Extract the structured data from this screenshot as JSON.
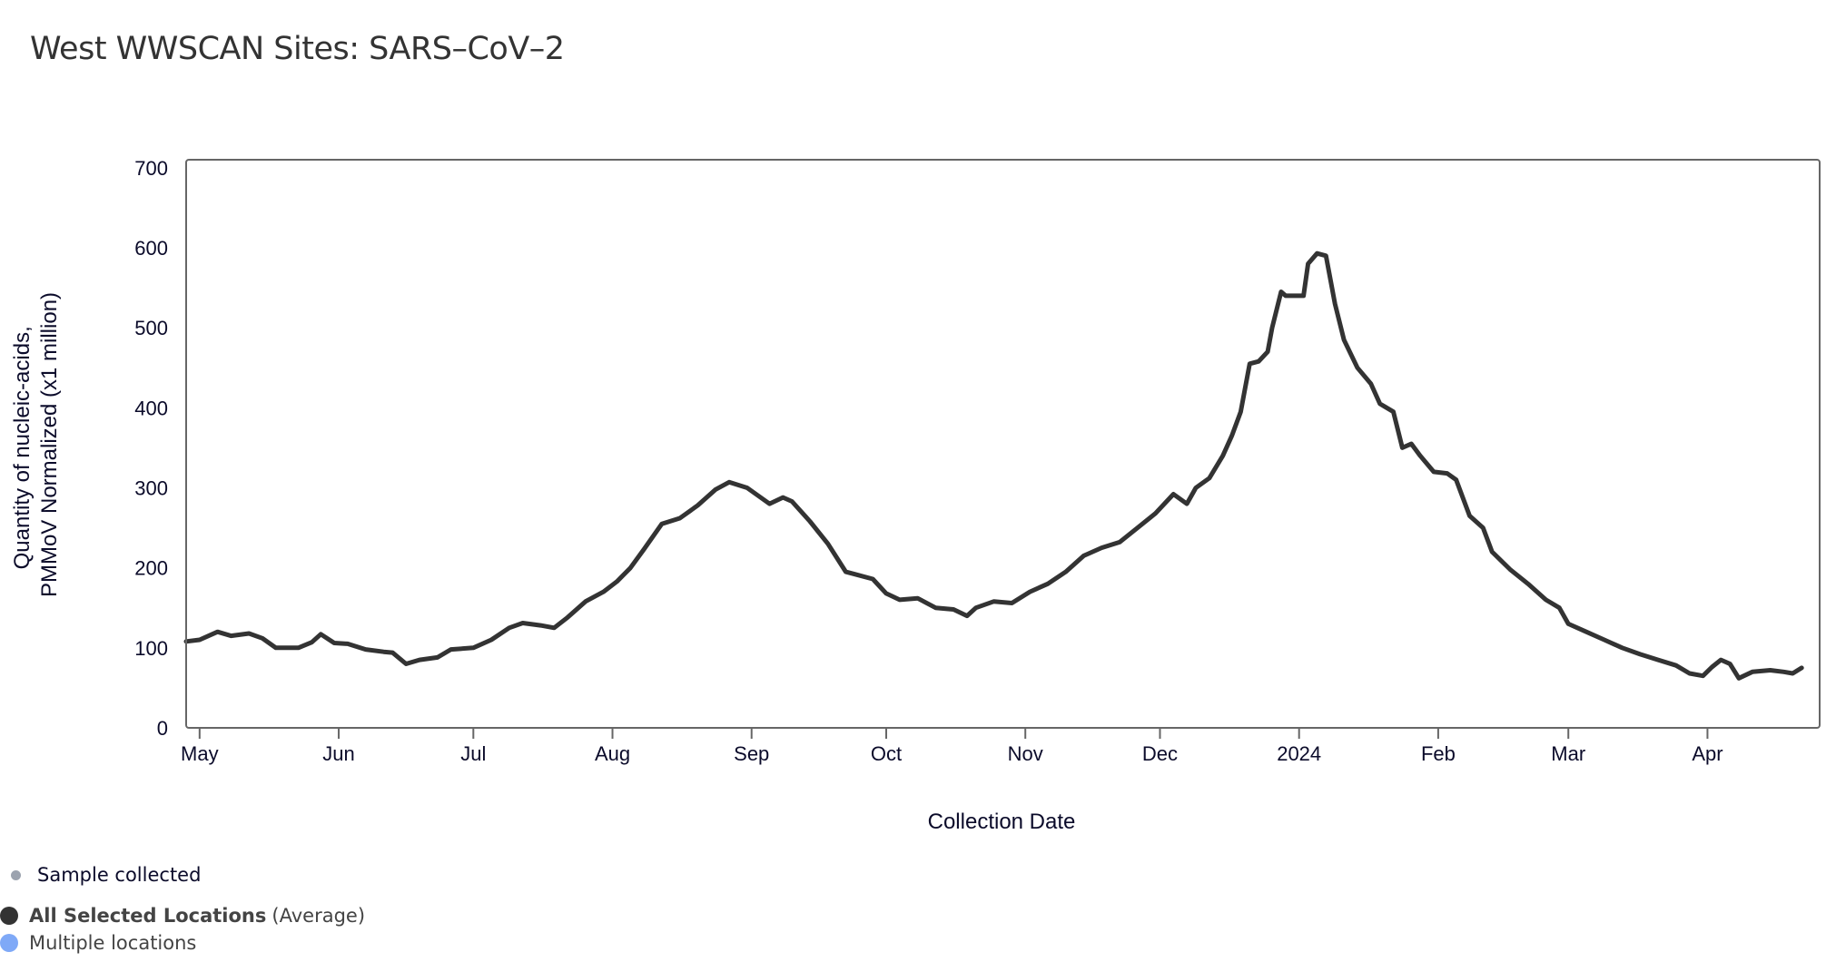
{
  "title": "West WWSCAN Sites: SARS–CoV–2",
  "colors": {
    "line": "#333333",
    "sample_dot": "#9ca3af",
    "average_dot": "#333333",
    "multiple_dot": "#7fa9f7",
    "frame": "#666666"
  },
  "legend": {
    "sample": "Sample collected",
    "average_bold": "All Selected Locations",
    "average_suffix": "(Average)",
    "multiple": "Multiple locations"
  },
  "chart_data": {
    "type": "line",
    "title": "West WWSCAN Sites: SARS–CoV–2",
    "xlabel": "Collection Date",
    "ylabel": [
      "Quantity of nucleic-acids,",
      "PMMoV Normalized (x1 million)"
    ],
    "xlim": [
      "2023-04-28",
      "2024-04-26"
    ],
    "ylim": [
      0,
      710
    ],
    "yticks": [
      0,
      100,
      200,
      300,
      400,
      500,
      600,
      700
    ],
    "xticks": [
      {
        "date": "2023-05-01",
        "label": "May"
      },
      {
        "date": "2023-06-01",
        "label": "Jun"
      },
      {
        "date": "2023-07-01",
        "label": "Jul"
      },
      {
        "date": "2023-08-01",
        "label": "Aug"
      },
      {
        "date": "2023-09-01",
        "label": "Sep"
      },
      {
        "date": "2023-10-01",
        "label": "Oct"
      },
      {
        "date": "2023-11-01",
        "label": "Nov"
      },
      {
        "date": "2023-12-01",
        "label": "Dec"
      },
      {
        "date": "2024-01-01",
        "label": "2024"
      },
      {
        "date": "2024-02-01",
        "label": "Feb"
      },
      {
        "date": "2024-03-01",
        "label": "Mar"
      },
      {
        "date": "2024-04-01",
        "label": "Apr"
      }
    ],
    "grid": false,
    "legend_placement": "bottom-left",
    "series": [
      {
        "name": "All Selected Locations (Average)",
        "points": [
          [
            "2023-04-28",
            108
          ],
          [
            "2023-05-01",
            110
          ],
          [
            "2023-05-05",
            120
          ],
          [
            "2023-05-08",
            115
          ],
          [
            "2023-05-12",
            118
          ],
          [
            "2023-05-15",
            112
          ],
          [
            "2023-05-18",
            100
          ],
          [
            "2023-05-23",
            100
          ],
          [
            "2023-05-26",
            107
          ],
          [
            "2023-05-28",
            117
          ],
          [
            "2023-05-31",
            106
          ],
          [
            "2023-06-03",
            105
          ],
          [
            "2023-06-07",
            98
          ],
          [
            "2023-06-11",
            95
          ],
          [
            "2023-06-13",
            94
          ],
          [
            "2023-06-16",
            80
          ],
          [
            "2023-06-19",
            85
          ],
          [
            "2023-06-23",
            88
          ],
          [
            "2023-06-26",
            98
          ],
          [
            "2023-07-01",
            100
          ],
          [
            "2023-07-05",
            110
          ],
          [
            "2023-07-09",
            125
          ],
          [
            "2023-07-12",
            131
          ],
          [
            "2023-07-16",
            128
          ],
          [
            "2023-07-19",
            125
          ],
          [
            "2023-07-22",
            138
          ],
          [
            "2023-07-26",
            158
          ],
          [
            "2023-07-30",
            170
          ],
          [
            "2023-08-02",
            183
          ],
          [
            "2023-08-05",
            200
          ],
          [
            "2023-08-08",
            223
          ],
          [
            "2023-08-12",
            255
          ],
          [
            "2023-08-16",
            262
          ],
          [
            "2023-08-20",
            278
          ],
          [
            "2023-08-24",
            298
          ],
          [
            "2023-08-27",
            307
          ],
          [
            "2023-08-31",
            300
          ],
          [
            "2023-09-05",
            280
          ],
          [
            "2023-09-08",
            288
          ],
          [
            "2023-09-10",
            283
          ],
          [
            "2023-09-14",
            258
          ],
          [
            "2023-09-18",
            230
          ],
          [
            "2023-09-22",
            195
          ],
          [
            "2023-09-24",
            192
          ],
          [
            "2023-09-28",
            186
          ],
          [
            "2023-10-01",
            168
          ],
          [
            "2023-10-04",
            160
          ],
          [
            "2023-10-08",
            162
          ],
          [
            "2023-10-12",
            150
          ],
          [
            "2023-10-16",
            148
          ],
          [
            "2023-10-19",
            140
          ],
          [
            "2023-10-21",
            150
          ],
          [
            "2023-10-25",
            158
          ],
          [
            "2023-10-29",
            156
          ],
          [
            "2023-11-02",
            170
          ],
          [
            "2023-11-06",
            180
          ],
          [
            "2023-11-10",
            195
          ],
          [
            "2023-11-14",
            215
          ],
          [
            "2023-11-18",
            225
          ],
          [
            "2023-11-22",
            232
          ],
          [
            "2023-11-26",
            250
          ],
          [
            "2023-11-30",
            268
          ],
          [
            "2023-12-04",
            292
          ],
          [
            "2023-12-07",
            280
          ],
          [
            "2023-12-09",
            300
          ],
          [
            "2023-12-12",
            312
          ],
          [
            "2023-12-15",
            340
          ],
          [
            "2023-12-17",
            365
          ],
          [
            "2023-12-19",
            395
          ],
          [
            "2023-12-21",
            455
          ],
          [
            "2023-12-23",
            458
          ],
          [
            "2023-12-25",
            470
          ],
          [
            "2023-12-26",
            500
          ],
          [
            "2023-12-28",
            545
          ],
          [
            "2023-12-29",
            540
          ],
          [
            "2023-12-31",
            540
          ],
          [
            "2024-01-02",
            540
          ],
          [
            "2024-01-03",
            580
          ],
          [
            "2024-01-05",
            593
          ],
          [
            "2024-01-07",
            590
          ],
          [
            "2024-01-09",
            530
          ],
          [
            "2024-01-11",
            485
          ],
          [
            "2024-01-14",
            450
          ],
          [
            "2024-01-17",
            430
          ],
          [
            "2024-01-19",
            405
          ],
          [
            "2024-01-22",
            395
          ],
          [
            "2024-01-24",
            350
          ],
          [
            "2024-01-26",
            355
          ],
          [
            "2024-01-28",
            340
          ],
          [
            "2024-01-31",
            320
          ],
          [
            "2024-02-03",
            318
          ],
          [
            "2024-02-05",
            310
          ],
          [
            "2024-02-08",
            265
          ],
          [
            "2024-02-11",
            250
          ],
          [
            "2024-02-13",
            220
          ],
          [
            "2024-02-17",
            198
          ],
          [
            "2024-02-21",
            180
          ],
          [
            "2024-02-25",
            160
          ],
          [
            "2024-02-28",
            150
          ],
          [
            "2024-03-01",
            130
          ],
          [
            "2024-03-05",
            120
          ],
          [
            "2024-03-09",
            110
          ],
          [
            "2024-03-13",
            100
          ],
          [
            "2024-03-17",
            92
          ],
          [
            "2024-03-21",
            85
          ],
          [
            "2024-03-25",
            78
          ],
          [
            "2024-03-28",
            68
          ],
          [
            "2024-03-31",
            65
          ],
          [
            "2024-04-02",
            76
          ],
          [
            "2024-04-04",
            85
          ],
          [
            "2024-04-06",
            80
          ],
          [
            "2024-04-08",
            62
          ],
          [
            "2024-04-11",
            70
          ],
          [
            "2024-04-15",
            72
          ],
          [
            "2024-04-18",
            70
          ],
          [
            "2024-04-20",
            68
          ],
          [
            "2024-04-22",
            75
          ]
        ]
      }
    ]
  }
}
